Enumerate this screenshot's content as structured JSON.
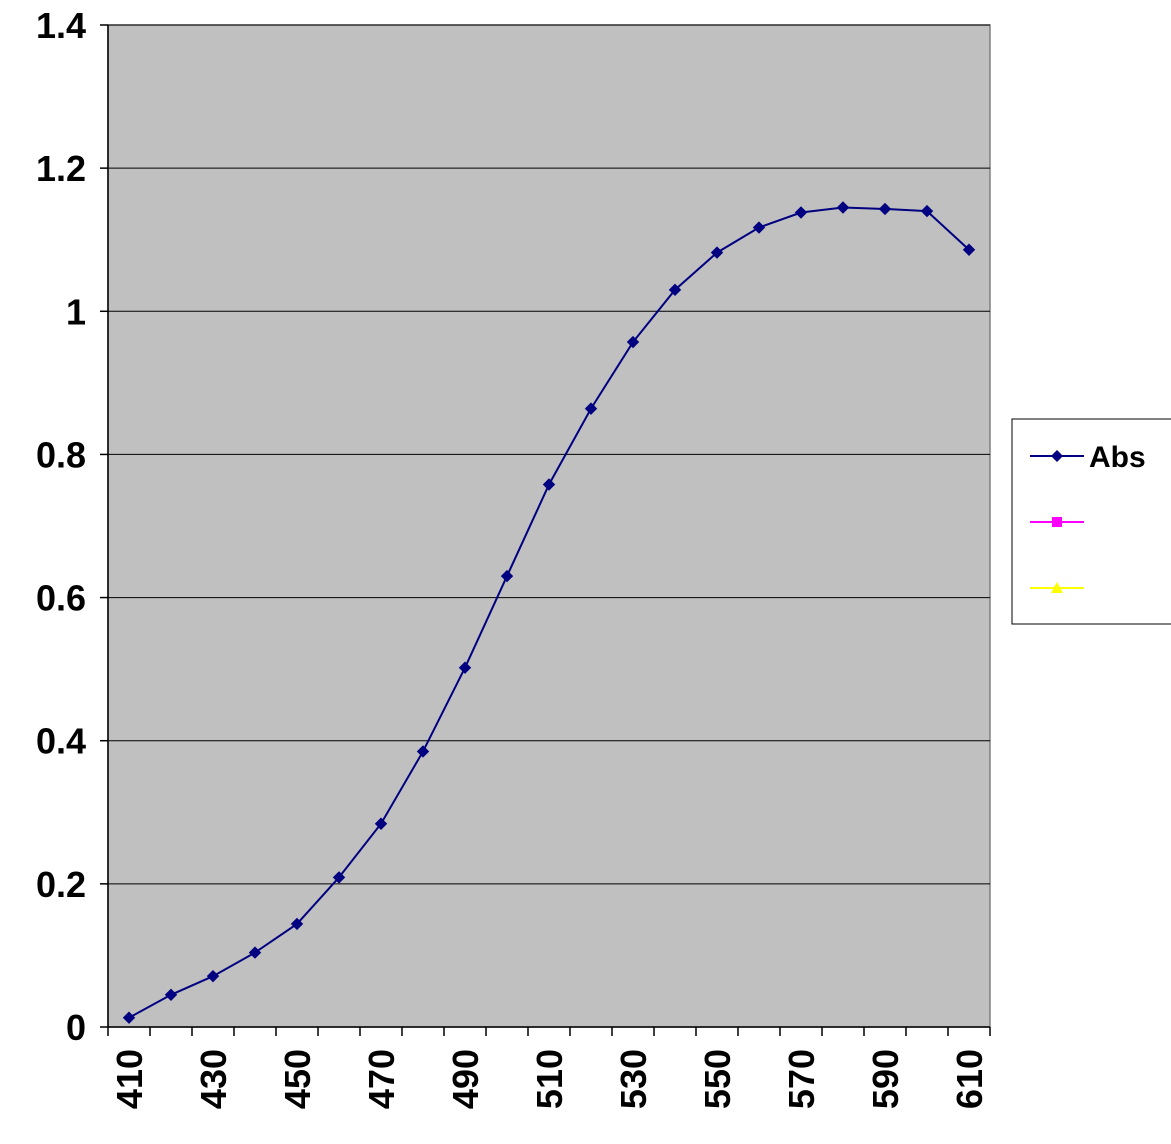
{
  "chart_data": {
    "type": "line",
    "title": "",
    "xlabel": "",
    "ylabel": "",
    "x_tick_labels": [
      "410",
      "430",
      "450",
      "470",
      "490",
      "510",
      "530",
      "550",
      "570",
      "590",
      "610"
    ],
    "y_tick_labels": [
      "0",
      "0.2",
      "0.4",
      "0.6",
      "0.8",
      "1",
      "1.2",
      "1.4"
    ],
    "ylim": [
      0,
      1.4
    ],
    "grid": "horizontal",
    "background_color": "#c0c0c0",
    "legend_position": "right",
    "categories": [
      "410",
      "420",
      "430",
      "440",
      "450",
      "460",
      "470",
      "480",
      "490",
      "500",
      "510",
      "520",
      "530",
      "540",
      "550",
      "560",
      "570",
      "580",
      "590",
      "600",
      "610"
    ],
    "series": [
      {
        "name": "Abs",
        "color": "#000080",
        "marker": "diamond",
        "values": [
          0.013,
          0.045,
          0.071,
          0.104,
          0.144,
          0.209,
          0.284,
          0.385,
          0.502,
          0.63,
          0.758,
          0.864,
          0.957,
          1.03,
          1.082,
          1.117,
          1.138,
          1.145,
          1.143,
          1.14,
          1.086
        ]
      }
    ],
    "legend_entries": [
      {
        "label": "Abs",
        "color": "#000080",
        "marker": "diamond"
      },
      {
        "label": "",
        "color": "#ff00ff",
        "marker": "square"
      },
      {
        "label": "",
        "color": "#ffff00",
        "marker": "triangle"
      }
    ]
  }
}
